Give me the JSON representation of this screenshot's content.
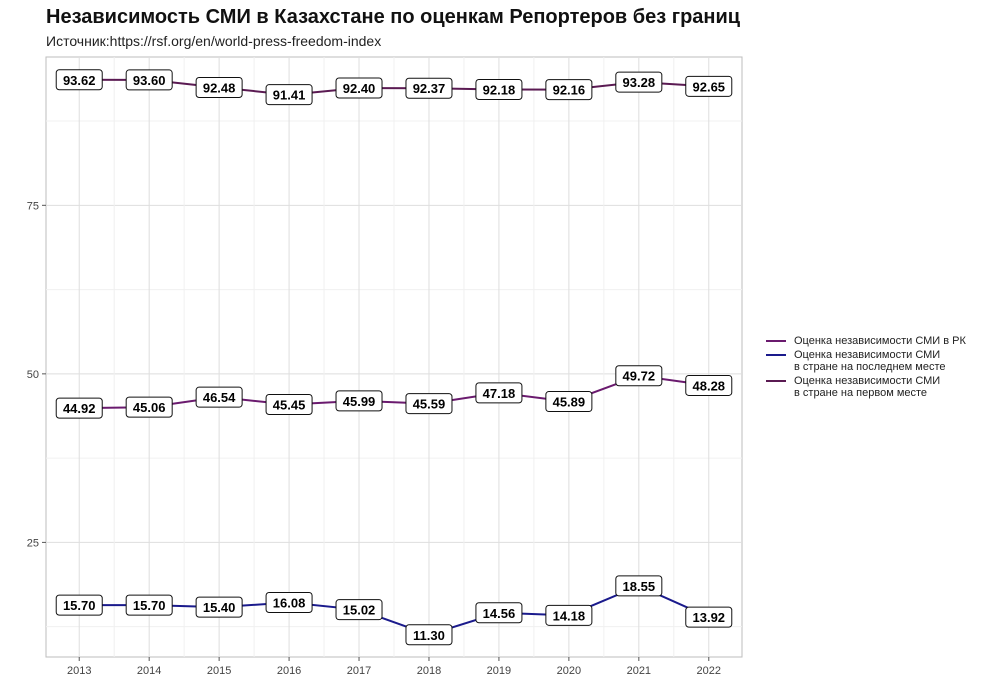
{
  "title": "Независимость СМИ в Казахстане по оценкам Репортеров без границ",
  "subtitle": "Источник:https://rsf.org/en/world-press-freedom-index",
  "chart_data": {
    "type": "line",
    "x": [
      "2013",
      "2014",
      "2015",
      "2016",
      "2017",
      "2018",
      "2019",
      "2020",
      "2021",
      "2022"
    ],
    "ylim": [
      8,
      97
    ],
    "yticks": [
      "25",
      "50",
      "75"
    ],
    "grid": true,
    "legend_position": "right",
    "series": [
      {
        "name": "Оценка независимости СМИ в РК",
        "color": "#6a1a6e",
        "values": [
          44.92,
          45.06,
          46.54,
          45.45,
          45.99,
          45.59,
          47.18,
          45.89,
          49.72,
          48.28
        ],
        "labels": [
          "44.92",
          "45.06",
          "46.54",
          "45.45",
          "45.99",
          "45.59",
          "47.18",
          "45.89",
          "49.72",
          "48.28"
        ]
      },
      {
        "name": "Оценка независимости СМИ\nв стране на последнем месте",
        "color": "#1a1a8c",
        "values": [
          15.7,
          15.7,
          15.4,
          16.08,
          15.02,
          11.3,
          14.56,
          14.18,
          18.55,
          13.92
        ],
        "labels": [
          "15.70",
          "15.70",
          "15.40",
          "16.08",
          "15.02",
          "11.30",
          "14.56",
          "14.18",
          "18.55",
          "13.92"
        ]
      },
      {
        "name": "Оценка независимости СМИ\nв стране на первом месте",
        "color": "#5a1a52",
        "values": [
          93.62,
          93.6,
          92.48,
          91.41,
          92.4,
          92.37,
          92.18,
          92.16,
          93.28,
          92.65
        ],
        "labels": [
          "93.62",
          "93.60",
          "92.48",
          "91.41",
          "92.40",
          "92.37",
          "92.18",
          "92.16",
          "93.28",
          "92.65"
        ]
      }
    ]
  }
}
